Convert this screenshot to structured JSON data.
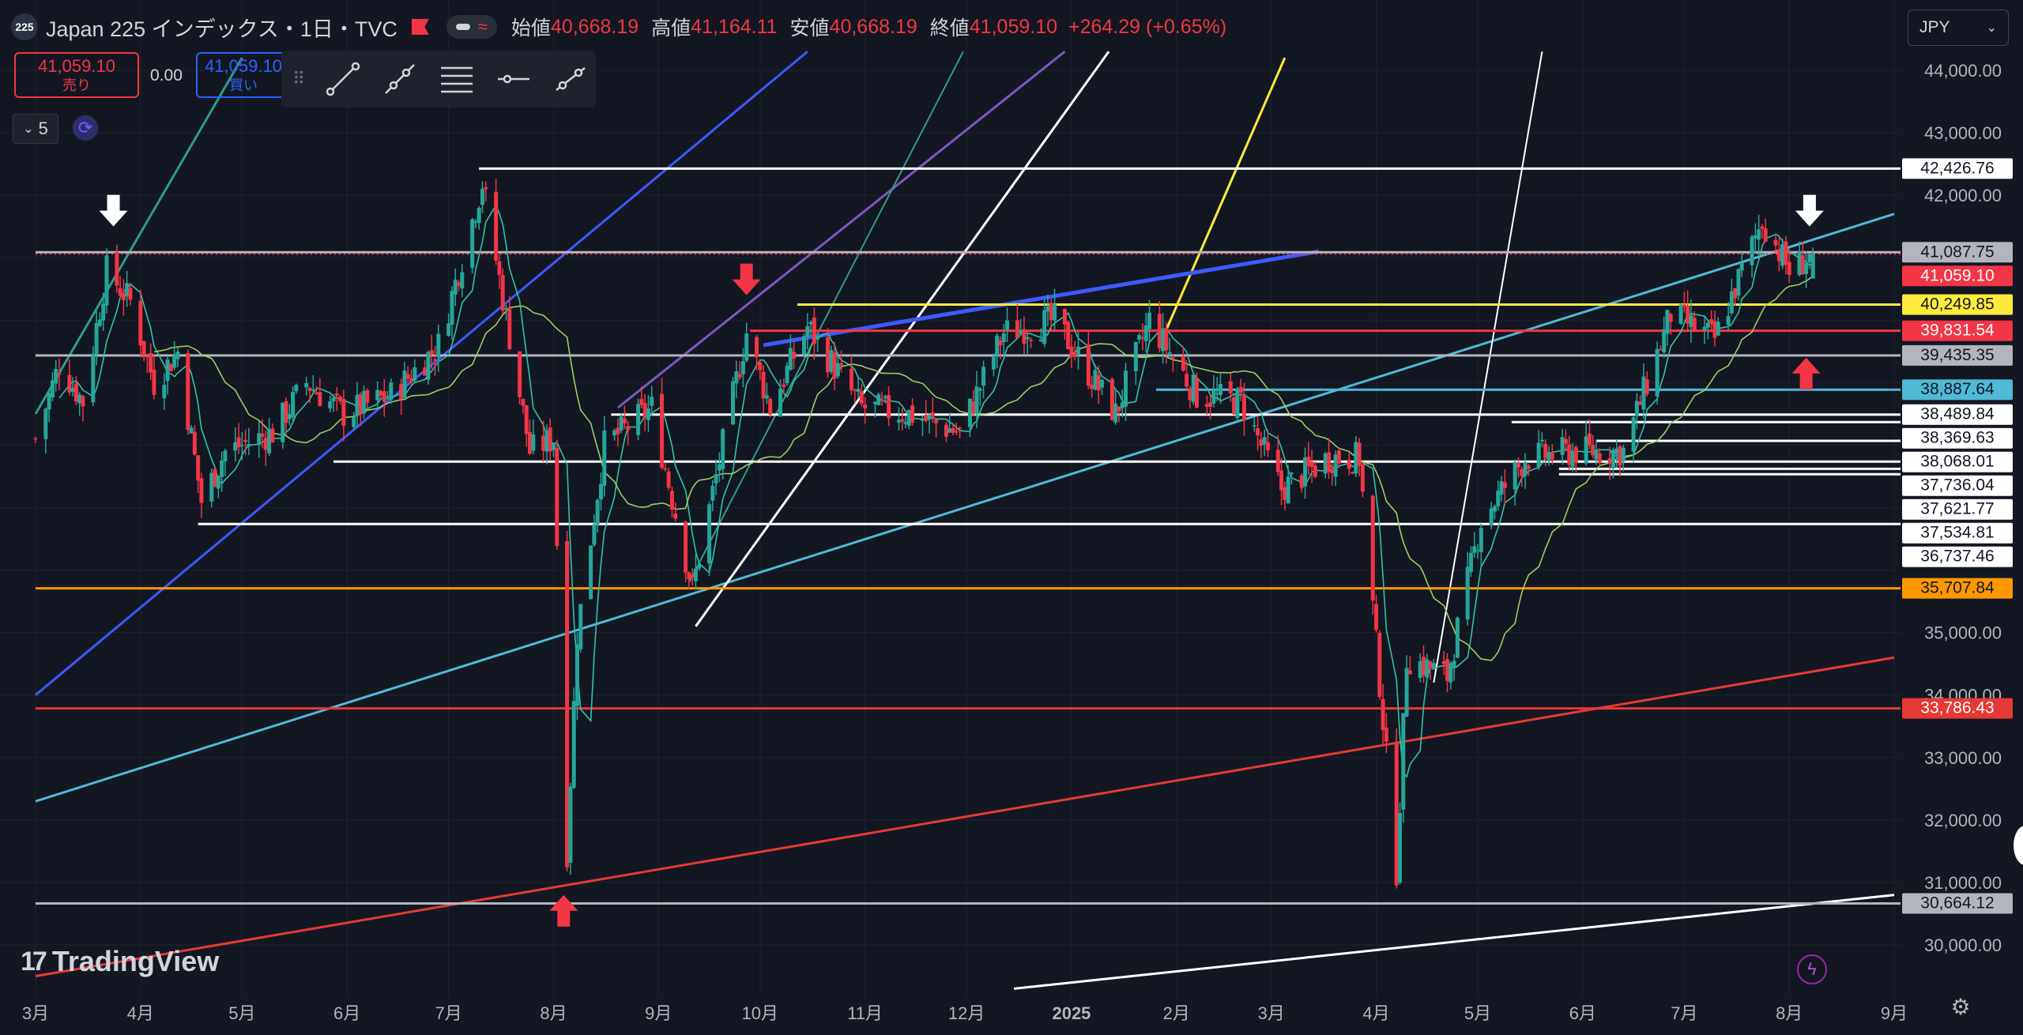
{
  "header": {
    "badge": "225",
    "symbol": "Japan 225 インデックス・1日・TVC",
    "pill_icon": "≈",
    "ohlc": [
      {
        "label": "始値",
        "value": "40,668.19"
      },
      {
        "label": "高値",
        "value": "41,164.11"
      },
      {
        "label": "安値",
        "value": "40,668.19"
      },
      {
        "label": "終値",
        "value": "41,059.10"
      }
    ],
    "change": "+264.29 (+0.65%)"
  },
  "trade": {
    "sell_price": "41,059.10",
    "sell_label": "売り",
    "spread": "0.00",
    "buy_price": "41,059.10",
    "buy_label": "買い"
  },
  "counter": {
    "value": "5"
  },
  "currency": {
    "value": "JPY"
  },
  "logo": {
    "text": "TradingView",
    "mark": "17"
  },
  "colors": {
    "background": "#131722",
    "up": "#26a69a",
    "down": "#f23645",
    "white": "#ffffff",
    "cyan": "#4fb9d6",
    "blue": "#3d5afe",
    "purple": "#7e57c2",
    "teal": "#2e9c84",
    "yellow": "#ffeb3b",
    "orange": "#ff9800",
    "red": "#e53935",
    "gray": "#b2b5be"
  },
  "chart_data": {
    "type": "candlestick",
    "y_axis": {
      "min": 30000,
      "max": 44000,
      "side": "right",
      "ticks": [
        {
          "value": 44000,
          "label": "44,000.00"
        },
        {
          "value": 43000,
          "label": "43,000.00"
        },
        {
          "value": 42000,
          "label": "42,000.00"
        },
        {
          "value": 35000,
          "label": "35,000.00"
        },
        {
          "value": 34000,
          "label": "34,000.00"
        },
        {
          "value": 33000,
          "label": "33,000.00"
        },
        {
          "value": 32000,
          "label": "32,000.00"
        },
        {
          "value": 31000,
          "label": "31,000.00"
        },
        {
          "value": 30000,
          "label": "30,000.00"
        }
      ]
    },
    "x_axis": {
      "start": "2024-03-01",
      "end": "2025-09-01",
      "ticks": [
        {
          "date": "2024-03-01",
          "label": "3月"
        },
        {
          "date": "2024-04-01",
          "label": "4月"
        },
        {
          "date": "2024-05-01",
          "label": "5月"
        },
        {
          "date": "2024-06-01",
          "label": "6月"
        },
        {
          "date": "2024-07-01",
          "label": "7月"
        },
        {
          "date": "2024-08-01",
          "label": "8月"
        },
        {
          "date": "2024-09-01",
          "label": "9月"
        },
        {
          "date": "2024-10-01",
          "label": "10月"
        },
        {
          "date": "2024-11-01",
          "label": "11月"
        },
        {
          "date": "2024-12-01",
          "label": "12月"
        },
        {
          "date": "2025-01-01",
          "label": "2025",
          "bold": true
        },
        {
          "date": "2025-02-01",
          "label": "2月"
        },
        {
          "date": "2025-03-01",
          "label": "3月"
        },
        {
          "date": "2025-04-01",
          "label": "4月"
        },
        {
          "date": "2025-05-01",
          "label": "5月"
        },
        {
          "date": "2025-06-01",
          "label": "6月"
        },
        {
          "date": "2025-07-01",
          "label": "7月"
        },
        {
          "date": "2025-08-01",
          "label": "8月"
        },
        {
          "date": "2025-09-01",
          "label": "9月"
        }
      ]
    },
    "grid": true,
    "price_anchors": [
      {
        "date": "2024-03-01",
        "price": 38100
      },
      {
        "date": "2024-03-08",
        "price": 39300
      },
      {
        "date": "2024-03-15",
        "price": 38700
      },
      {
        "date": "2024-03-22",
        "price": 40800
      },
      {
        "date": "2024-03-29",
        "price": 40300
      },
      {
        "date": "2024-04-05",
        "price": 39000
      },
      {
        "date": "2024-04-12",
        "price": 39500
      },
      {
        "date": "2024-04-19",
        "price": 37100
      },
      {
        "date": "2024-04-26",
        "price": 37900
      },
      {
        "date": "2024-05-10",
        "price": 38200
      },
      {
        "date": "2024-05-20",
        "price": 39000
      },
      {
        "date": "2024-05-31",
        "price": 38500
      },
      {
        "date": "2024-06-14",
        "price": 38800
      },
      {
        "date": "2024-06-28",
        "price": 39600
      },
      {
        "date": "2024-07-11",
        "price": 42200
      },
      {
        "date": "2024-07-25",
        "price": 37900
      },
      {
        "date": "2024-08-01",
        "price": 38100
      },
      {
        "date": "2024-08-05",
        "price": 31500
      },
      {
        "date": "2024-08-08",
        "price": 35000
      },
      {
        "date": "2024-08-16",
        "price": 38000
      },
      {
        "date": "2024-08-30",
        "price": 38600
      },
      {
        "date": "2024-09-11",
        "price": 35700
      },
      {
        "date": "2024-09-27",
        "price": 39800
      },
      {
        "date": "2024-10-04",
        "price": 38600
      },
      {
        "date": "2024-10-15",
        "price": 39900
      },
      {
        "date": "2024-10-31",
        "price": 38600
      },
      {
        "date": "2024-11-14",
        "price": 38500
      },
      {
        "date": "2024-11-29",
        "price": 38200
      },
      {
        "date": "2024-12-12",
        "price": 39800
      },
      {
        "date": "2024-12-27",
        "price": 40000
      },
      {
        "date": "2025-01-14",
        "price": 38500
      },
      {
        "date": "2025-01-24",
        "price": 40000
      },
      {
        "date": "2025-02-07",
        "price": 38800
      },
      {
        "date": "2025-02-20",
        "price": 38700
      },
      {
        "date": "2025-03-04",
        "price": 37300
      },
      {
        "date": "2025-03-18",
        "price": 37800
      },
      {
        "date": "2025-03-27",
        "price": 37800
      },
      {
        "date": "2025-04-07",
        "price": 31200
      },
      {
        "date": "2025-04-10",
        "price": 34600
      },
      {
        "date": "2025-04-22",
        "price": 34300
      },
      {
        "date": "2025-05-02",
        "price": 36800
      },
      {
        "date": "2025-05-15",
        "price": 37800
      },
      {
        "date": "2025-05-30",
        "price": 37900
      },
      {
        "date": "2025-06-13",
        "price": 37900
      },
      {
        "date": "2025-06-27",
        "price": 40100
      },
      {
        "date": "2025-07-10",
        "price": 39700
      },
      {
        "date": "2025-07-24",
        "price": 41600
      },
      {
        "date": "2025-08-01",
        "price": 40800
      },
      {
        "date": "2025-08-08",
        "price": 41059.1
      }
    ],
    "horizontal_lines": [
      {
        "price": 42426.76,
        "label": "42,426.76",
        "line": "#ffffff",
        "tag_bg": "#ffffff",
        "tag_fg": "#131722",
        "from": "2024-07-10"
      },
      {
        "price": 41087.75,
        "label": "41,087.75",
        "line": "#b2b5be",
        "tag_bg": "#b2b5be",
        "tag_fg": "#131722",
        "from": "2024-03-01"
      },
      {
        "price": 41059.1,
        "label": "41,059.10",
        "line": "#f23645",
        "tag_bg": "#f23645",
        "tag_fg": "#ffffff",
        "from": "2024-03-01",
        "dotted": true
      },
      {
        "price": 40249.85,
        "label": "40,249.85",
        "line": "#ffeb3b",
        "tag_bg": "#ffeb3b",
        "tag_fg": "#131722",
        "from": "2024-10-12"
      },
      {
        "price": 39831.54,
        "label": "39,831.54",
        "line": "#f23645",
        "tag_bg": "#f23645",
        "tag_fg": "#ffffff",
        "from": "2024-09-28"
      },
      {
        "price": 39435.35,
        "label": "39,435.35",
        "line": "#b2b5be",
        "tag_bg": "#b2b5be",
        "tag_fg": "#131722",
        "from": "2024-03-01"
      },
      {
        "price": 38887.64,
        "label": "38,887.64",
        "line": "#4fb9d6",
        "tag_bg": "#4fb9d6",
        "tag_fg": "#131722",
        "from": "2025-01-26"
      },
      {
        "price": 38489.84,
        "label": "38,489.84",
        "line": "#ffffff",
        "tag_bg": "#ffffff",
        "tag_fg": "#131722",
        "from": "2024-08-18"
      },
      {
        "price": 38369.63,
        "label": "38,369.63",
        "line": "#ffffff",
        "tag_bg": "#ffffff",
        "tag_fg": "#131722",
        "from": "2025-05-11"
      },
      {
        "price": 38068.01,
        "label": "38,068.01",
        "line": "#ffffff",
        "tag_bg": "#ffffff",
        "tag_fg": "#131722",
        "from": "2025-06-05"
      },
      {
        "price": 37736.04,
        "label": "37,736.04",
        "line": "#ffffff",
        "tag_bg": "#ffffff",
        "tag_fg": "#131722",
        "from": "2024-05-28"
      },
      {
        "price": 37621.77,
        "label": "37,621.77",
        "line": "#ffffff",
        "tag_bg": "#ffffff",
        "tag_fg": "#131722",
        "from": "2025-05-25"
      },
      {
        "price": 37534.81,
        "label": "37,534.81",
        "line": "#ffffff",
        "tag_bg": "#ffffff",
        "tag_fg": "#131722",
        "from": "2025-05-25"
      },
      {
        "price": 36737.46,
        "label": "36,737.46",
        "line": "#ffffff",
        "tag_bg": "#ffffff",
        "tag_fg": "#131722",
        "from": "2024-04-18"
      },
      {
        "price": 35707.84,
        "label": "35,707.84",
        "line": "#ff9800",
        "tag_bg": "#ff9800",
        "tag_fg": "#131722",
        "from": "2024-03-01"
      },
      {
        "price": 33786.43,
        "label": "33,786.43",
        "line": "#e53935",
        "tag_bg": "#e53935",
        "tag_fg": "#ffffff",
        "from": "2024-03-01"
      },
      {
        "price": 30664.12,
        "label": "30,664.12",
        "line": "#b2b5be",
        "tag_bg": "#b2b5be",
        "tag_fg": "#131722",
        "from": "2024-03-01"
      }
    ],
    "trend_lines": [
      {
        "color": "#2e9c84",
        "width": 3,
        "from": [
          "2024-03-01",
          38500
        ],
        "to": [
          "2024-05-01",
          44200
        ]
      },
      {
        "color": "#3d5afe",
        "width": 3,
        "from": [
          "2024-03-01",
          34000
        ],
        "to": [
          "2024-10-15",
          44300
        ]
      },
      {
        "color": "#7e57c2",
        "width": 3,
        "from": [
          "2024-08-20",
          38600
        ],
        "to": [
          "2024-12-30",
          44300
        ]
      },
      {
        "color": "#2e9c84",
        "width": 2,
        "from": [
          "2024-09-10",
          35800
        ],
        "to": [
          "2024-11-30",
          44300
        ]
      },
      {
        "color": "#4fb9d6",
        "width": 3,
        "from": [
          "2024-03-01",
          32300
        ],
        "to": [
          "2025-09-01",
          41700
        ]
      },
      {
        "color": "#ffffff",
        "width": 3,
        "from": [
          "2024-09-12",
          35100
        ],
        "to": [
          "2025-01-12",
          44300
        ]
      },
      {
        "color": "#ffffff",
        "width": 2,
        "from": [
          "2025-04-18",
          34200
        ],
        "to": [
          "2025-05-20",
          44300
        ]
      },
      {
        "color": "#ffeb3b",
        "width": 3,
        "from": [
          "2025-01-27",
          39600
        ],
        "to": [
          "2025-03-05",
          44200
        ]
      },
      {
        "color": "#3d5afe",
        "width": 5,
        "from": [
          "2024-10-02",
          39600
        ],
        "to": [
          "2025-03-15",
          41100
        ]
      },
      {
        "color": "#e53935",
        "width": 3,
        "from": [
          "2024-03-01",
          29500
        ],
        "to": [
          "2025-09-01",
          34600
        ]
      },
      {
        "color": "#ffffff",
        "width": 3,
        "from": [
          "2024-12-15",
          29300
        ],
        "to": [
          "2025-09-01",
          30800
        ]
      }
    ],
    "arrows": [
      {
        "date": "2024-03-24",
        "price": 41500,
        "dir": "down",
        "color": "#ffffff"
      },
      {
        "date": "2024-09-27",
        "price": 40400,
        "dir": "down",
        "color": "#f23645"
      },
      {
        "date": "2024-08-04",
        "price": 30800,
        "dir": "up",
        "color": "#f23645"
      },
      {
        "date": "2025-08-06",
        "price": 39400,
        "dir": "up",
        "color": "#f23645"
      },
      {
        "date": "2025-08-07",
        "price": 41500,
        "dir": "down",
        "color": "#ffffff"
      }
    ]
  }
}
